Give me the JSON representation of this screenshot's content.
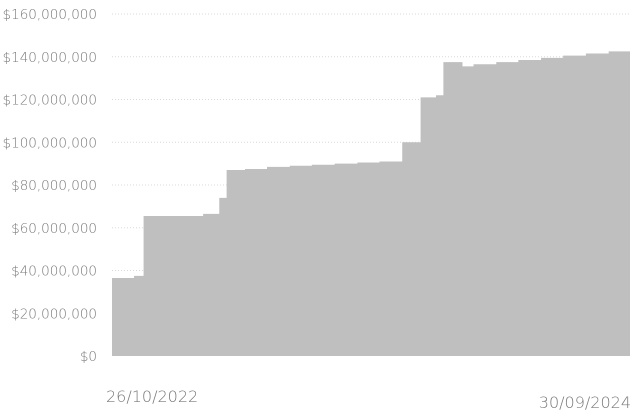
{
  "chart_data": {
    "type": "area",
    "title": "",
    "xlabel": "",
    "ylabel": "",
    "ylim": [
      0,
      160000000
    ],
    "yticks": [
      0,
      20000000,
      40000000,
      60000000,
      80000000,
      100000000,
      120000000,
      140000000,
      160000000
    ],
    "ytick_labels": [
      "$0",
      "$20,000,000",
      "$40,000,000",
      "$60,000,000",
      "$80,000,000",
      "$100,000,000",
      "$120,000,000",
      "$140,000,000",
      "$160,000,000"
    ],
    "x_start_label": "26/10/2022",
    "x_end_label": "30/09/2024",
    "grid": true,
    "legend": "none",
    "color": "#bfbfbf",
    "series": [
      {
        "x": [
          "2022-10-26",
          "2022-11-25",
          "2022-12-08",
          "2023-01-01",
          "2023-02-27",
          "2023-03-21",
          "2023-03-31",
          "2023-04-25",
          "2023-05-25",
          "2023-06-25",
          "2023-07-25",
          "2023-08-25",
          "2023-09-25",
          "2023-10-25",
          "2023-11-25",
          "2023-12-20",
          "2024-01-10",
          "2024-01-20",
          "2024-02-15",
          "2024-03-01",
          "2024-04-01",
          "2024-05-01",
          "2024-06-01",
          "2024-07-01",
          "2024-08-01",
          "2024-09-01",
          "2024-09-30"
        ],
        "values": [
          36500000,
          37500000,
          65500000,
          65500000,
          66500000,
          74000000,
          87000000,
          87500000,
          88500000,
          89000000,
          89500000,
          90000000,
          90500000,
          91000000,
          100000000,
          121000000,
          122000000,
          137500000,
          135500000,
          136500000,
          137500000,
          138500000,
          139500000,
          140500000,
          141500000,
          142500000,
          143500000
        ]
      }
    ]
  }
}
